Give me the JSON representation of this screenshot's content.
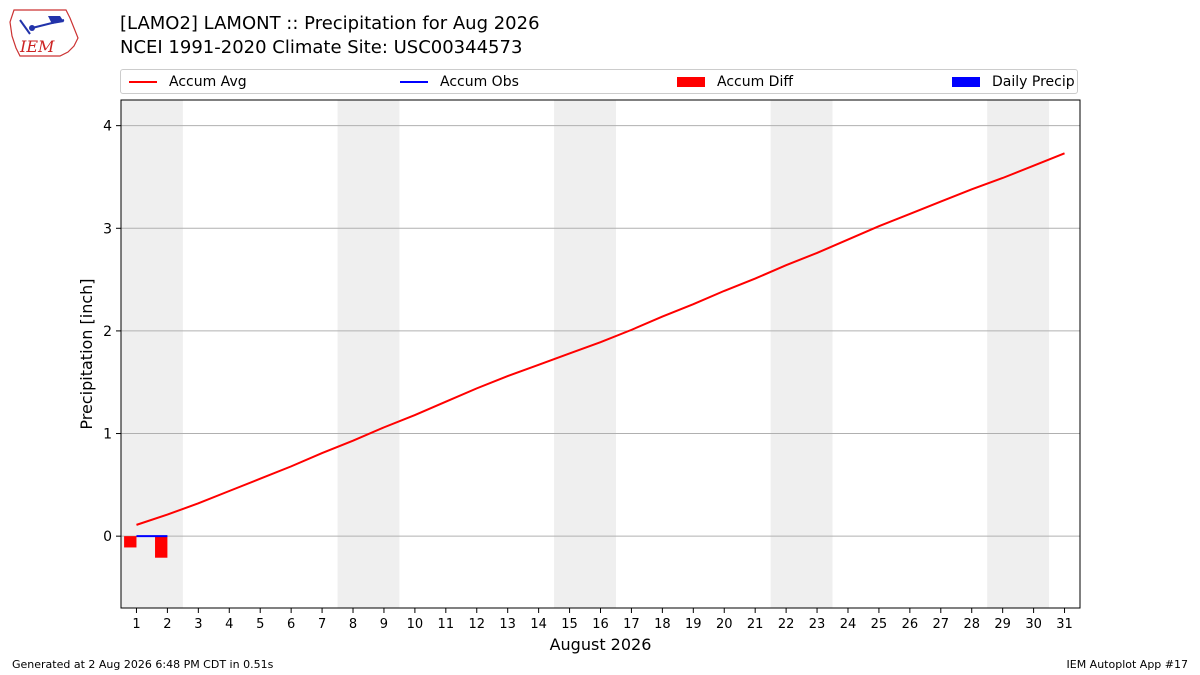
{
  "header": {
    "title_line1": "[LAMO2] LAMONT :: Precipitation for Aug 2026",
    "title_line2": "NCEI 1991-2020 Climate Site: USC00344573",
    "logo_text": "IEM"
  },
  "footer": {
    "generated": "Generated at 2 Aug 2026 6:48 PM CDT in 0.51s",
    "app": "IEM Autoplot App #17"
  },
  "colors": {
    "accum_avg": "#ff0000",
    "accum_obs": "#0000ff",
    "accum_diff": "#ff0000",
    "daily_precip": "#0000ff",
    "weekend_shade": "#efefef",
    "grid": "#b0b0b0"
  },
  "chart_data": {
    "type": "line",
    "xlabel": "August 2026",
    "ylabel": "Precipitation [inch]",
    "xlim": [
      0.5,
      31.5
    ],
    "ylim": [
      -0.7,
      4.25
    ],
    "yticks": [
      0,
      1,
      2,
      3,
      4
    ],
    "xticks": [
      1,
      2,
      3,
      4,
      5,
      6,
      7,
      8,
      9,
      10,
      11,
      12,
      13,
      14,
      15,
      16,
      17,
      18,
      19,
      20,
      21,
      22,
      23,
      24,
      25,
      26,
      27,
      28,
      29,
      30,
      31
    ],
    "grid": "y",
    "legend_position": "top",
    "legend": [
      "Accum Avg",
      "Accum Obs",
      "Accum Diff",
      "Daily Precip"
    ],
    "weekend_bands": [
      [
        0.5,
        2.5
      ],
      [
        7.5,
        9.5
      ],
      [
        14.5,
        16.5
      ],
      [
        21.5,
        23.5
      ],
      [
        28.5,
        30.5
      ]
    ],
    "series": [
      {
        "name": "Accum Avg",
        "kind": "line",
        "x": [
          1,
          2,
          3,
          4,
          5,
          6,
          7,
          8,
          9,
          10,
          11,
          12,
          13,
          14,
          15,
          16,
          17,
          18,
          19,
          20,
          21,
          22,
          23,
          24,
          25,
          26,
          27,
          28,
          29,
          30,
          31
        ],
        "values": [
          0.11,
          0.21,
          0.32,
          0.44,
          0.56,
          0.68,
          0.81,
          0.93,
          1.06,
          1.18,
          1.31,
          1.44,
          1.56,
          1.67,
          1.78,
          1.89,
          2.01,
          2.14,
          2.26,
          2.39,
          2.51,
          2.64,
          2.76,
          2.89,
          3.02,
          3.14,
          3.26,
          3.38,
          3.49,
          3.61,
          3.73
        ]
      },
      {
        "name": "Accum Obs",
        "kind": "line",
        "x": [
          1,
          2
        ],
        "values": [
          0.0,
          0.0
        ]
      },
      {
        "name": "Accum Diff",
        "kind": "bar",
        "x": [
          1,
          2
        ],
        "values": [
          -0.11,
          -0.21
        ]
      },
      {
        "name": "Daily Precip",
        "kind": "bar",
        "x": [
          1,
          2
        ],
        "values": [
          0.0,
          0.0
        ]
      }
    ]
  }
}
